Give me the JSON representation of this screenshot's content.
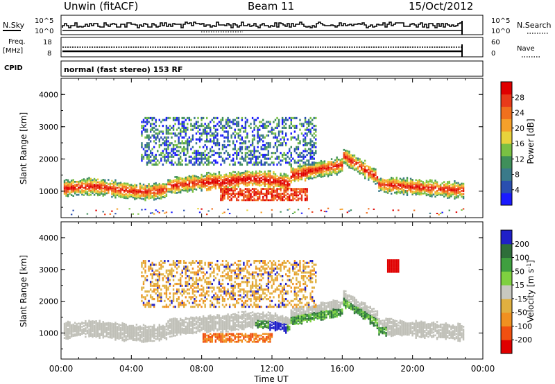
{
  "header": {
    "station": "Unwin (fitACF)",
    "beam": "Beam 11",
    "date": "15/Oct/2012"
  },
  "top_strips": {
    "nsky_label": "N.Sky",
    "nsky_ticks": [
      "10^5",
      "10^0"
    ],
    "nsearch_label": "N.Search",
    "nsearch_ticks": [
      "10^5",
      "10^0"
    ],
    "freq_label_1": "Freq.",
    "freq_label_2": "[MHz]",
    "freq_ticks": [
      "18",
      "8"
    ],
    "nave_label": "Nave",
    "nave_ticks": [
      "60",
      "0"
    ],
    "cpid_label": "CPID",
    "cpid_text": "normal (fast stereo) 153 RF"
  },
  "colors": {
    "power_scale": [
      "#1a1aff",
      "#2a4fb0",
      "#3a7a8a",
      "#3f8f5a",
      "#7ac043",
      "#e8d23c",
      "#f5a02a",
      "#f0701e",
      "#e83a1a",
      "#e00000"
    ],
    "velocity_scale": [
      "#2020c8",
      "#2e6e3a",
      "#3f9f3f",
      "#7fd040",
      "#c8c8c0",
      "#e0b040",
      "#f09020",
      "#f05010",
      "#e00000"
    ],
    "ground_scatter": "#c0c0b8"
  },
  "chart_data": [
    {
      "type": "heatmap",
      "title": "",
      "xlabel": "Time UT",
      "ylabel": "Slant Range [km]",
      "x_ticks": [
        "00:00",
        "04:00",
        "08:00",
        "12:00",
        "16:00",
        "20:00",
        "00:00"
      ],
      "y_ticks": [
        "1000",
        "2000",
        "3000",
        "4000"
      ],
      "xlim_hours": [
        0,
        24
      ],
      "ylim_km": [
        180,
        4500
      ],
      "colorbar": {
        "label": "Power [dB]",
        "ticks": [
          "4",
          "8",
          "12",
          "16",
          "20",
          "24",
          "28"
        ],
        "range": [
          0,
          30
        ]
      }
    },
    {
      "type": "heatmap",
      "title": "",
      "xlabel": "Time UT",
      "ylabel": "Slant Range [km]",
      "x_ticks": [
        "00:00",
        "04:00",
        "08:00",
        "12:00",
        "16:00",
        "20:00",
        "00:00"
      ],
      "y_ticks": [
        "1000",
        "2000",
        "3000",
        "4000"
      ],
      "xlim_hours": [
        0,
        24
      ],
      "ylim_km": [
        180,
        4500
      ],
      "colorbar": {
        "label": "Velocity [m s",
        "label_sup": "-1",
        "label_end": "]",
        "ticks": [
          "200",
          "100",
          "50",
          "15",
          "-15",
          "-50",
          "-100",
          "-200"
        ],
        "range": [
          -300,
          300
        ]
      }
    }
  ]
}
